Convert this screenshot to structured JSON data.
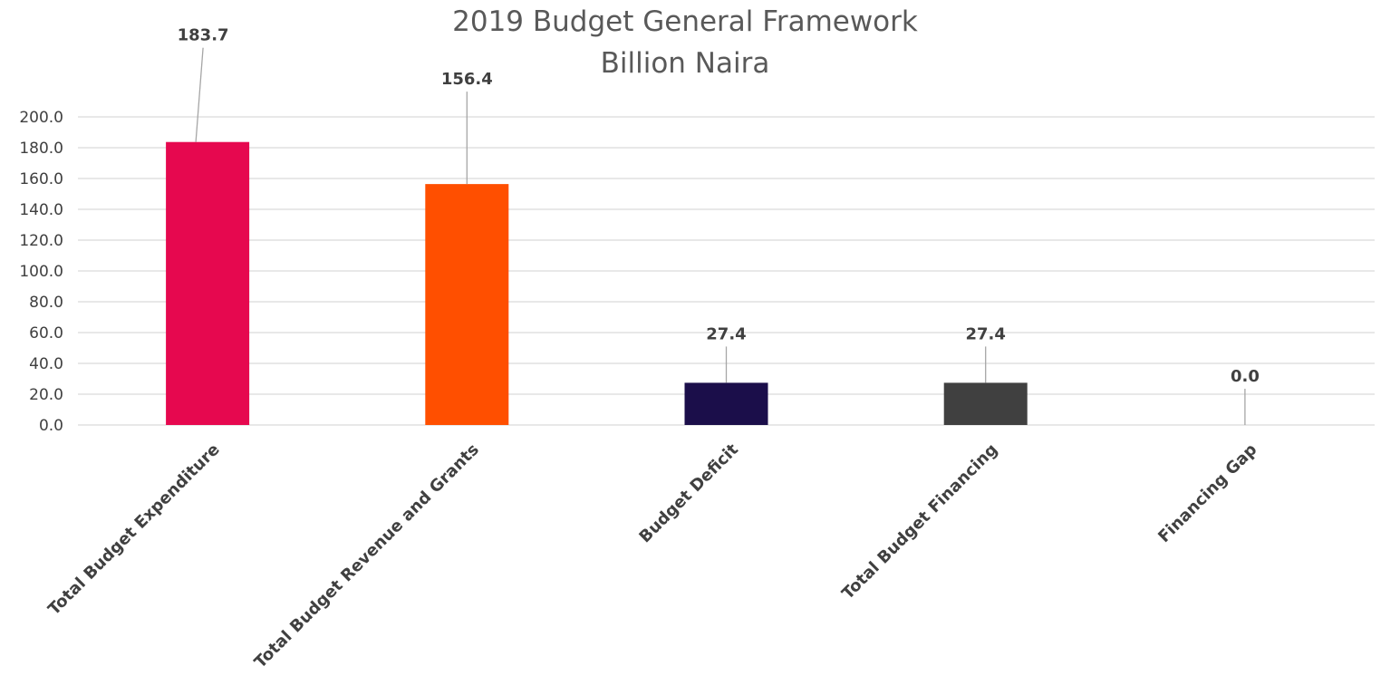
{
  "chart_data": {
    "type": "bar",
    "title": "2019 Budget General Framework",
    "subtitle": "Billion Naira",
    "categories": [
      "Total Budget Expenditure",
      "Total Budget Revenue and Grants",
      "Budget Deficit",
      "Total Budget Financing",
      "Financing Gap"
    ],
    "values": [
      183.7,
      156.4,
      27.4,
      27.4,
      0.0
    ],
    "value_labels": [
      "183.7",
      "156.4",
      "27.4",
      "27.4",
      "0.0"
    ],
    "colors": [
      "#e6084f",
      "#ff4f00",
      "#1b0e4a",
      "#404040",
      "#404040"
    ],
    "ylim": [
      0,
      200
    ],
    "yticks": [
      "0.0",
      "20.0",
      "40.0",
      "60.0",
      "80.0",
      "100.0",
      "120.0",
      "140.0",
      "160.0",
      "180.0",
      "200.0"
    ],
    "xlabel": "",
    "ylabel": "",
    "grid": true,
    "legend": "none"
  }
}
